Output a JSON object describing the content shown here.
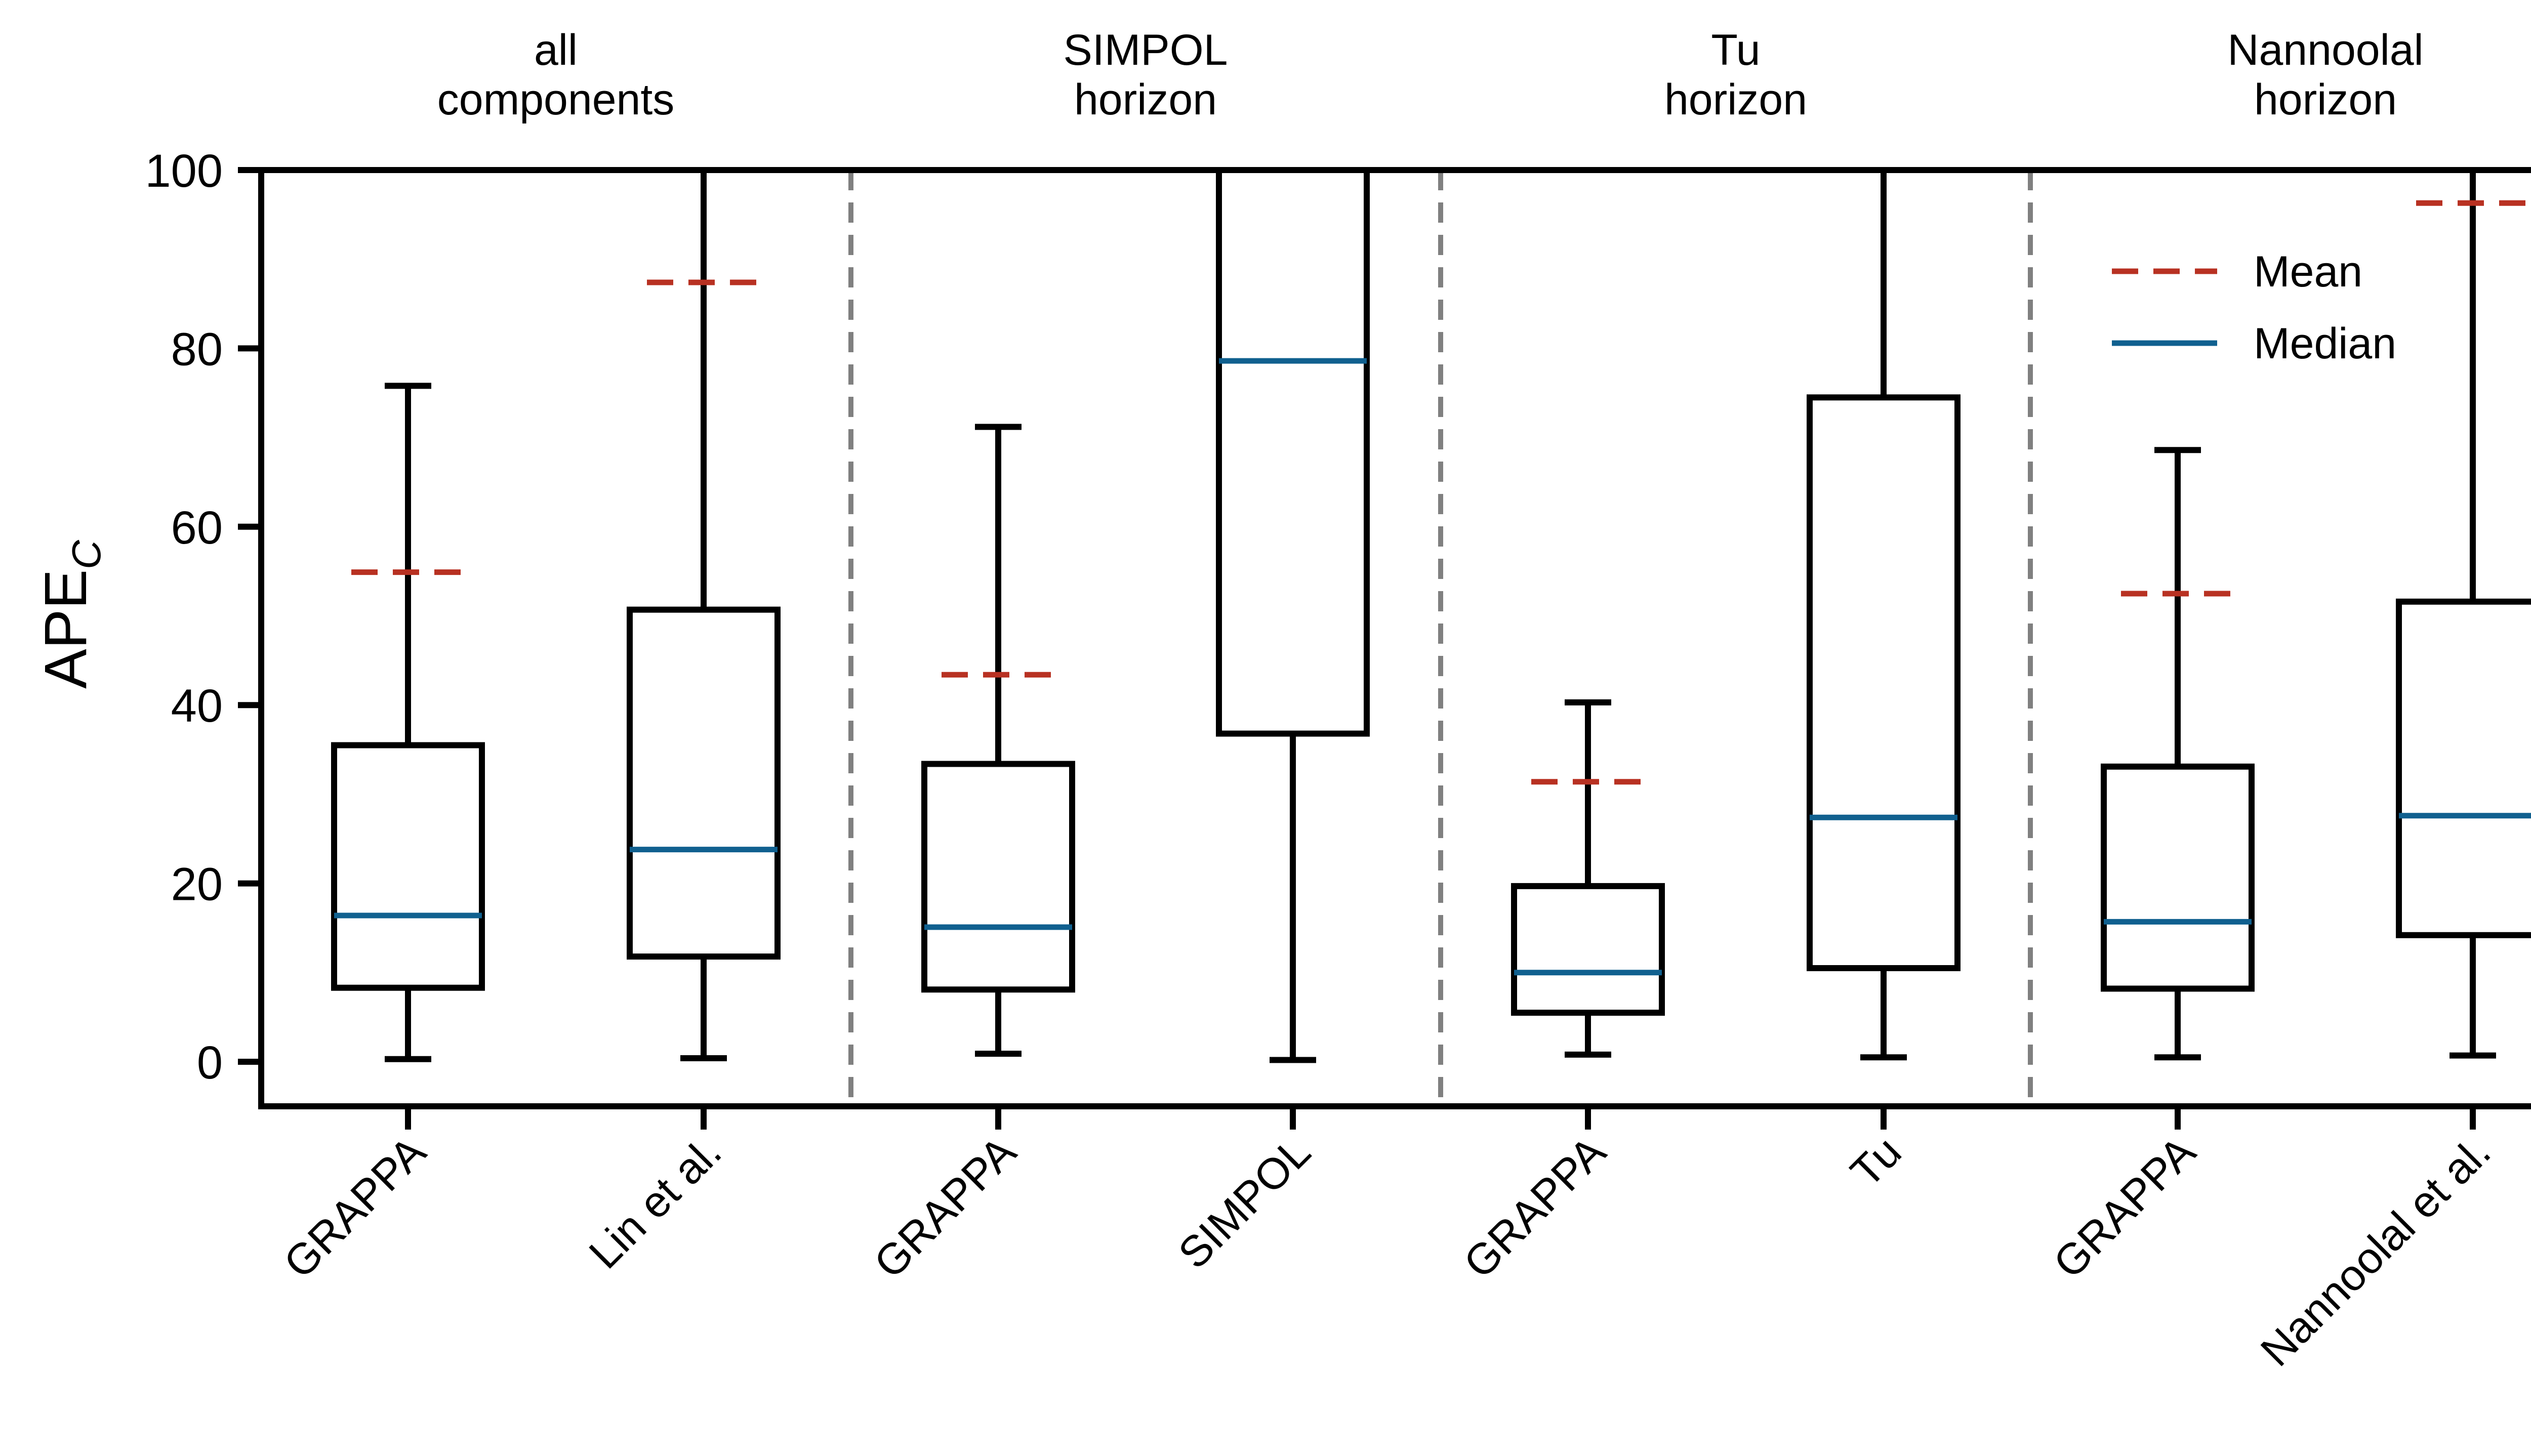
{
  "chart_data": {
    "type": "box",
    "ylabel": "APE",
    "ylabel_subscript": "C",
    "ylim": [
      -5,
      100
    ],
    "yticks": [
      "0",
      "20",
      "40",
      "60",
      "80",
      "100"
    ],
    "ytick_values": [
      0,
      20,
      40,
      60,
      80,
      100
    ],
    "groups": [
      {
        "label_lines": [
          "all",
          "components"
        ]
      },
      {
        "label_lines": [
          "SIMPOL",
          "horizon"
        ]
      },
      {
        "label_lines": [
          "Tu",
          "horizon"
        ]
      },
      {
        "label_lines": [
          "Nannoolal",
          "horizon"
        ]
      }
    ],
    "categories": [
      "GRAPPA",
      "Lin et al.",
      "GRAPPA",
      "SIMPOL",
      "GRAPPA",
      "Tu",
      "GRAPPA",
      "Nannoolal et al."
    ],
    "boxes": [
      {
        "whisker_low": 0.3,
        "q1": 8.3,
        "median": 16.4,
        "q3": 35.5,
        "whisker_high": 75.8,
        "mean": 54.9
      },
      {
        "whisker_low": 0.4,
        "q1": 11.8,
        "median": 23.8,
        "q3": 50.7,
        "whisker_high": 100,
        "mean": 87.4
      },
      {
        "whisker_low": 0.9,
        "q1": 8.1,
        "median": 15.1,
        "q3": 33.4,
        "whisker_high": 71.2,
        "mean": 43.4
      },
      {
        "whisker_low": 0.2,
        "q1": 36.8,
        "median": 78.6,
        "q3": 100,
        "whisker_high": 100,
        "mean": null
      },
      {
        "whisker_low": 0.8,
        "q1": 5.5,
        "median": 10.0,
        "q3": 19.7,
        "whisker_high": 40.3,
        "mean": 31.4
      },
      {
        "whisker_low": 0.5,
        "q1": 10.5,
        "median": 27.4,
        "q3": 74.5,
        "whisker_high": 100,
        "mean": null
      },
      {
        "whisker_low": 0.5,
        "q1": 8.2,
        "median": 15.7,
        "q3": 33.1,
        "whisker_high": 68.6,
        "mean": 52.5
      },
      {
        "whisker_low": 0.7,
        "q1": 14.2,
        "median": 27.6,
        "q3": 51.6,
        "whisker_high": 100,
        "mean": 96.3
      }
    ],
    "legend": {
      "position": "top-right",
      "mean_label": "Mean",
      "median_label": "Median"
    },
    "colors": {
      "mean": "#b83122",
      "median": "#10608f",
      "box": "#000000",
      "separator": "#808080"
    }
  }
}
